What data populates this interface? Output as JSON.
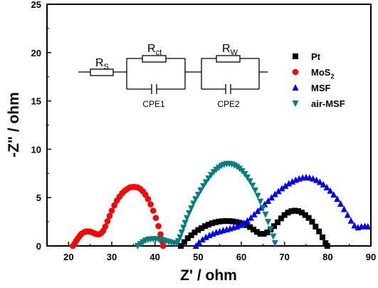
{
  "chart_data": {
    "type": "scatter",
    "xlabel": "Z' / ohm",
    "ylabel": "-Z\" / ohm",
    "xlim": [
      15,
      90
    ],
    "ylim": [
      0,
      25
    ],
    "x_ticks": [
      "20",
      "30",
      "40",
      "50",
      "60",
      "70",
      "80",
      "90"
    ],
    "y_ticks": [
      "0",
      "5",
      "10",
      "15",
      "20",
      "25"
    ],
    "legend_position": "top-right, inside plot",
    "series": [
      {
        "name": "Pt",
        "color": "#000000",
        "marker": "square",
        "points": [
          [
            46.0,
            0.0
          ],
          [
            46.8,
            0.4
          ],
          [
            47.6,
            0.8
          ],
          [
            48.4,
            1.1
          ],
          [
            49.2,
            1.4
          ],
          [
            50.0,
            1.65
          ],
          [
            50.8,
            1.85
          ],
          [
            51.6,
            2.05
          ],
          [
            52.4,
            2.2
          ],
          [
            53.2,
            2.35
          ],
          [
            54.0,
            2.45
          ],
          [
            54.8,
            2.52
          ],
          [
            55.6,
            2.56
          ],
          [
            56.4,
            2.58
          ],
          [
            57.2,
            2.57
          ],
          [
            58.0,
            2.54
          ],
          [
            58.8,
            2.48
          ],
          [
            59.6,
            2.4
          ],
          [
            60.4,
            2.3
          ],
          [
            61.2,
            2.15
          ],
          [
            62.0,
            1.95
          ],
          [
            62.8,
            1.7
          ],
          [
            63.6,
            1.45
          ],
          [
            64.4,
            1.25
          ],
          [
            65.2,
            1.25
          ],
          [
            66.0,
            1.4
          ],
          [
            66.8,
            1.7
          ],
          [
            67.6,
            2.05
          ],
          [
            68.4,
            2.45
          ],
          [
            69.2,
            2.85
          ],
          [
            70.0,
            3.2
          ],
          [
            70.8,
            3.45
          ],
          [
            71.6,
            3.6
          ],
          [
            72.4,
            3.65
          ],
          [
            73.2,
            3.6
          ],
          [
            74.0,
            3.45
          ],
          [
            74.8,
            3.2
          ],
          [
            75.6,
            2.9
          ],
          [
            76.4,
            2.5
          ],
          [
            77.2,
            2.0
          ],
          [
            78.0,
            1.5
          ],
          [
            78.8,
            0.9
          ],
          [
            79.5,
            0.3
          ],
          [
            79.9,
            0.0
          ]
        ]
      },
      {
        "name": "MoS",
        "name_subscript": "2",
        "color": "#ff0000",
        "marker": "circle",
        "points": [
          [
            21.0,
            0.0
          ],
          [
            21.4,
            0.25
          ],
          [
            21.8,
            0.55
          ],
          [
            22.2,
            0.8
          ],
          [
            22.6,
            1.05
          ],
          [
            23.0,
            1.25
          ],
          [
            23.5,
            1.4
          ],
          [
            24.0,
            1.5
          ],
          [
            24.5,
            1.5
          ],
          [
            25.0,
            1.48
          ],
          [
            25.5,
            1.4
          ],
          [
            26.0,
            1.3
          ],
          [
            26.5,
            1.22
          ],
          [
            27.0,
            1.2
          ],
          [
            27.5,
            1.3
          ],
          [
            28.0,
            1.55
          ],
          [
            28.5,
            2.0
          ],
          [
            29.0,
            2.55
          ],
          [
            29.5,
            3.1
          ],
          [
            30.0,
            3.65
          ],
          [
            30.6,
            4.2
          ],
          [
            31.2,
            4.7
          ],
          [
            31.8,
            5.1
          ],
          [
            32.4,
            5.45
          ],
          [
            33.0,
            5.7
          ],
          [
            33.6,
            5.9
          ],
          [
            34.2,
            6.05
          ],
          [
            34.8,
            6.1
          ],
          [
            35.4,
            6.1
          ],
          [
            36.0,
            6.05
          ],
          [
            36.6,
            5.9
          ],
          [
            37.2,
            5.65
          ],
          [
            37.8,
            5.3
          ],
          [
            38.4,
            4.85
          ],
          [
            39.0,
            4.3
          ],
          [
            39.6,
            3.65
          ],
          [
            40.2,
            2.9
          ],
          [
            40.8,
            2.05
          ],
          [
            41.3,
            1.2
          ],
          [
            41.7,
            0.45
          ],
          [
            41.9,
            0.0
          ]
        ]
      },
      {
        "name": "MSF",
        "color": "#0000ff",
        "marker": "triangle-up",
        "points": [
          [
            49.5,
            0.0
          ],
          [
            50.2,
            0.35
          ],
          [
            51.0,
            0.65
          ],
          [
            51.8,
            0.9
          ],
          [
            52.6,
            1.1
          ],
          [
            53.4,
            1.25
          ],
          [
            54.2,
            1.4
          ],
          [
            55.0,
            1.5
          ],
          [
            55.8,
            1.6
          ],
          [
            56.6,
            1.7
          ],
          [
            57.4,
            1.8
          ],
          [
            58.2,
            1.9
          ],
          [
            59.0,
            2.0
          ],
          [
            59.8,
            2.15
          ],
          [
            60.6,
            2.35
          ],
          [
            61.4,
            2.6
          ],
          [
            62.2,
            2.9
          ],
          [
            63.0,
            3.25
          ],
          [
            63.8,
            3.6
          ],
          [
            64.6,
            3.95
          ],
          [
            65.4,
            4.3
          ],
          [
            66.2,
            4.65
          ],
          [
            67.0,
            5.0
          ],
          [
            67.8,
            5.35
          ],
          [
            68.6,
            5.65
          ],
          [
            69.4,
            5.95
          ],
          [
            70.2,
            6.2
          ],
          [
            71.0,
            6.45
          ],
          [
            71.8,
            6.65
          ],
          [
            72.6,
            6.82
          ],
          [
            73.4,
            6.95
          ],
          [
            74.2,
            7.05
          ],
          [
            75.0,
            7.1
          ],
          [
            75.8,
            7.05
          ],
          [
            76.6,
            6.95
          ],
          [
            77.4,
            6.8
          ],
          [
            78.2,
            6.6
          ],
          [
            79.0,
            6.35
          ],
          [
            79.8,
            6.05
          ],
          [
            80.6,
            5.7
          ],
          [
            81.4,
            5.3
          ],
          [
            82.2,
            4.85
          ],
          [
            83.0,
            4.35
          ],
          [
            83.8,
            3.8
          ],
          [
            84.6,
            3.2
          ],
          [
            85.4,
            2.6
          ],
          [
            86.2,
            2.1
          ],
          [
            87.0,
            1.9
          ],
          [
            87.8,
            2.0
          ],
          [
            88.6,
            2.05
          ],
          [
            89.3,
            2.0
          ]
        ]
      },
      {
        "name": "air-MSF",
        "color": "#007f7f",
        "marker": "triangle-down",
        "points": [
          [
            36.0,
            0.0
          ],
          [
            36.6,
            0.2
          ],
          [
            37.2,
            0.4
          ],
          [
            37.8,
            0.55
          ],
          [
            38.4,
            0.65
          ],
          [
            39.0,
            0.7
          ],
          [
            39.6,
            0.72
          ],
          [
            40.2,
            0.72
          ],
          [
            40.8,
            0.7
          ],
          [
            41.4,
            0.65
          ],
          [
            42.0,
            0.58
          ],
          [
            42.6,
            0.5
          ],
          [
            43.2,
            0.42
          ],
          [
            43.8,
            0.35
          ],
          [
            44.4,
            0.3
          ],
          [
            45.0,
            0.3
          ],
          [
            45.4,
            0.5
          ],
          [
            45.8,
            0.9
          ],
          [
            46.2,
            1.4
          ],
          [
            46.6,
            1.9
          ],
          [
            47.0,
            2.4
          ],
          [
            47.4,
            2.9
          ],
          [
            47.9,
            3.4
          ],
          [
            48.4,
            3.9
          ],
          [
            48.9,
            4.4
          ],
          [
            49.4,
            4.85
          ],
          [
            50.0,
            5.3
          ],
          [
            50.6,
            5.75
          ],
          [
            51.2,
            6.2
          ],
          [
            51.8,
            6.6
          ],
          [
            52.4,
            7.0
          ],
          [
            53.0,
            7.35
          ],
          [
            53.6,
            7.65
          ],
          [
            54.2,
            7.9
          ],
          [
            54.8,
            8.1
          ],
          [
            55.4,
            8.3
          ],
          [
            56.0,
            8.42
          ],
          [
            56.6,
            8.5
          ],
          [
            57.2,
            8.5
          ],
          [
            57.8,
            8.45
          ],
          [
            58.4,
            8.35
          ],
          [
            59.0,
            8.2
          ],
          [
            59.6,
            8.0
          ],
          [
            60.2,
            7.75
          ],
          [
            60.8,
            7.45
          ],
          [
            61.4,
            7.1
          ],
          [
            62.0,
            6.7
          ],
          [
            62.6,
            6.25
          ],
          [
            63.2,
            5.75
          ],
          [
            63.8,
            5.2
          ],
          [
            64.4,
            4.6
          ],
          [
            65.0,
            3.95
          ],
          [
            65.6,
            3.25
          ],
          [
            66.2,
            2.5
          ],
          [
            66.8,
            1.75
          ],
          [
            67.4,
            1.0
          ],
          [
            67.8,
            0.3
          ]
        ]
      }
    ],
    "inset_circuit": {
      "labels": {
        "rs": "R",
        "rs_sub": "S",
        "rct": "R",
        "rct_sub": "ct",
        "rw": "R",
        "rw_sub": "W",
        "cpe1": "CPE1",
        "cpe2": "CPE2"
      }
    }
  }
}
